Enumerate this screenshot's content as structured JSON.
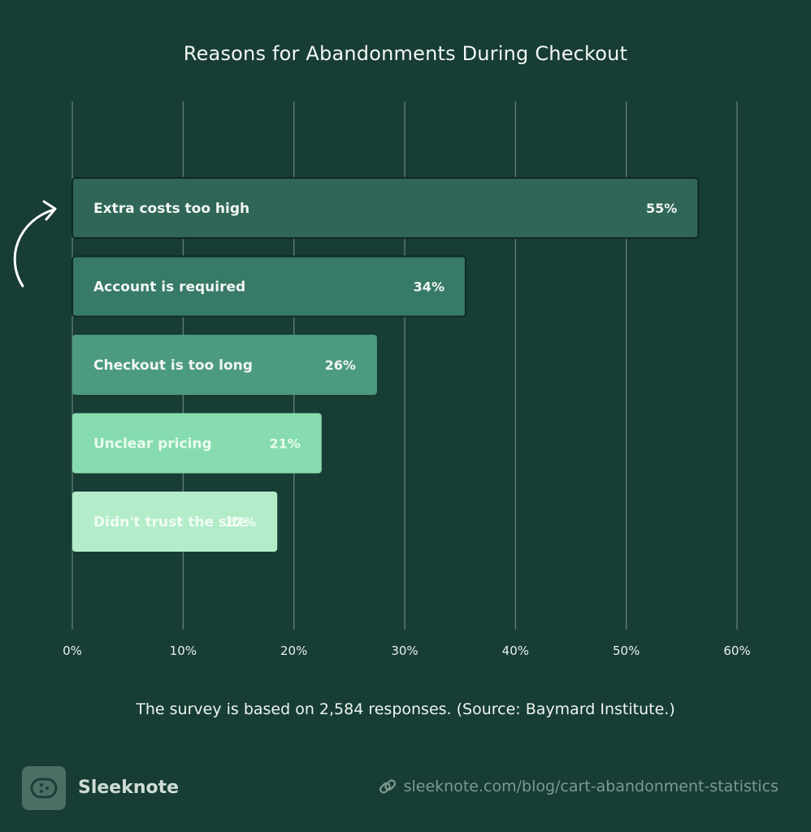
{
  "chart_data": {
    "type": "bar",
    "orientation": "horizontal",
    "title": "Reasons for Abandonments During Checkout",
    "categories": [
      "Extra costs too high",
      "Account is required",
      "Checkout is too long",
      "Unclear pricing",
      "Didn't trust the site"
    ],
    "values": [
      55,
      34,
      26,
      21,
      17
    ],
    "value_labels": [
      "55%",
      "34%",
      "26%",
      "21%",
      "17%"
    ],
    "xlim": [
      0,
      60
    ],
    "x_ticks": [
      "0%",
      "10%",
      "20%",
      "30%",
      "40%",
      "50%",
      "60%"
    ],
    "grid": true,
    "bar_colors": [
      "#2f6657",
      "#367a67",
      "#4c9b7f",
      "#86dcae",
      "#b3ecc9"
    ],
    "label_colors": [
      "#f2f6f3",
      "#f2f6f3",
      "#f2f6f3",
      "#e9fbef",
      "#f0fcf4"
    ]
  },
  "footer": {
    "note": "The survey is based on 2,584 responses. (Source: Baymard Institute.)",
    "brand": "Sleeknote",
    "url": "sleeknote.com/blog/cart-abandonment-statistics",
    "brand_icon": "sleeknote-logo-icon",
    "link_icon": "link-icon"
  },
  "colors": {
    "background": "#173d35",
    "arrow": "#ffffff"
  }
}
